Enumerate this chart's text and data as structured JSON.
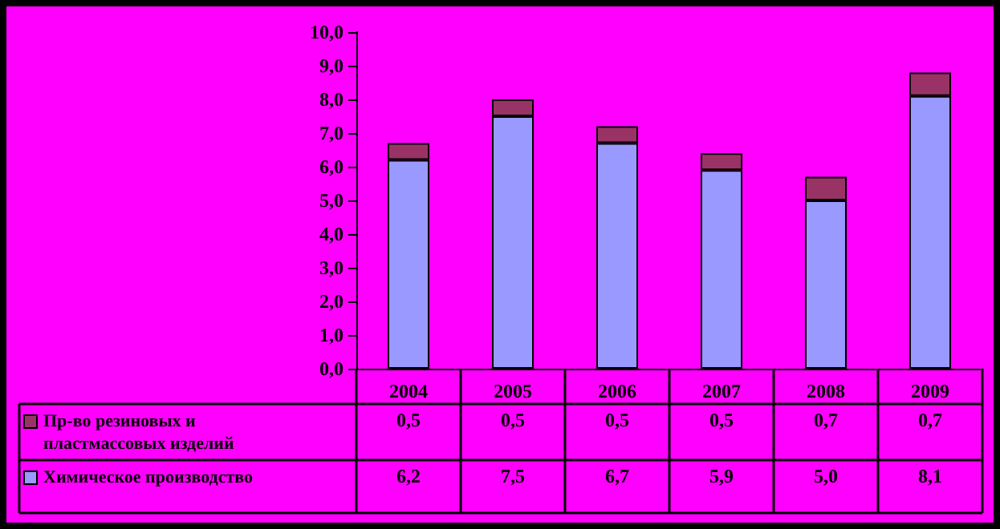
{
  "chart_data": {
    "type": "bar",
    "stacked": true,
    "categories": [
      "2004",
      "2005",
      "2006",
      "2007",
      "2008",
      "2009"
    ],
    "series": [
      {
        "name": "Химическое производство",
        "color": "#9999ff",
        "values": [
          6.2,
          7.5,
          6.7,
          5.9,
          5.0,
          8.1
        ],
        "value_labels": [
          "6,2",
          "7,5",
          "6,7",
          "5,9",
          "5,0",
          "8,1"
        ]
      },
      {
        "name": "Пр-во резиновых и пластмассовых изделий",
        "color": "#993366",
        "values": [
          0.5,
          0.5,
          0.5,
          0.5,
          0.7,
          0.7
        ],
        "value_labels": [
          "0,5",
          "0,5",
          "0,5",
          "0,5",
          "0,7",
          "0,7"
        ]
      }
    ],
    "ylim": [
      0,
      10
    ],
    "yticks": [
      {
        "value": 0,
        "label": "0,0"
      },
      {
        "value": 1,
        "label": "1,0"
      },
      {
        "value": 2,
        "label": "2,0"
      },
      {
        "value": 3,
        "label": "3,0"
      },
      {
        "value": 4,
        "label": "4,0"
      },
      {
        "value": 5,
        "label": "5,0"
      },
      {
        "value": 6,
        "label": "6,0"
      },
      {
        "value": 7,
        "label": "7,0"
      },
      {
        "value": 8,
        "label": "8,0"
      },
      {
        "value": 9,
        "label": "9,0"
      },
      {
        "value": 10,
        "label": "10,0"
      }
    ],
    "grid": false,
    "legend": "bottom"
  }
}
